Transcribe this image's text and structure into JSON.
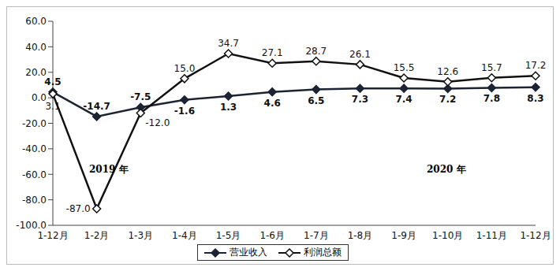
{
  "chart_data": {
    "type": "line",
    "categories": [
      "1-12月",
      "1-2月",
      "1-3月",
      "1-4月",
      "1-5月",
      "1-6月",
      "1-7月",
      "1-8月",
      "1-9月",
      "1-10月",
      "1-11月",
      "1-12月"
    ],
    "series": [
      {
        "name": "营业收入",
        "color": "#1c2333",
        "marker": "diamond",
        "values": [
          4.5,
          -14.7,
          -7.5,
          -1.6,
          1.3,
          4.6,
          6.5,
          7.3,
          7.4,
          7.2,
          7.8,
          8.3
        ],
        "value_labels": [
          "4.5",
          "-14.7",
          "-7.5",
          "-1.6",
          "1.3",
          "4.6",
          "6.5",
          "7.3",
          "7.4",
          "7.2",
          "7.8",
          "8.3"
        ]
      },
      {
        "name": "利润总额",
        "color": "#111111",
        "marker": "diamond_open",
        "values": [
          3.1,
          -87.0,
          -12.0,
          15.0,
          34.7,
          27.1,
          28.7,
          26.1,
          15.5,
          12.6,
          15.7,
          17.2
        ],
        "value_labels": [
          "3.1",
          "-87.0",
          "-12.0",
          "15.0",
          "34.7",
          "27.1",
          "28.7",
          "26.1",
          "15.5",
          "12.6",
          "15.7",
          "17.2"
        ]
      }
    ],
    "ylim": [
      -100,
      60
    ],
    "yticks": [
      {
        "value": -100,
        "label": "-100.0"
      },
      {
        "value": -80,
        "label": "-80.0"
      },
      {
        "value": -60,
        "label": "-60.0"
      },
      {
        "value": -40,
        "label": "-40.0"
      },
      {
        "value": -20,
        "label": "-20.0"
      },
      {
        "value": 0,
        "label": "0.0"
      },
      {
        "value": 20,
        "label": "20.0"
      },
      {
        "value": 40,
        "label": "40.0"
      },
      {
        "value": 60,
        "label": "60.0"
      }
    ],
    "annotations": [
      "2019 年",
      "2020 年"
    ],
    "data_labels": true,
    "legend": "bottom",
    "grid": false
  }
}
